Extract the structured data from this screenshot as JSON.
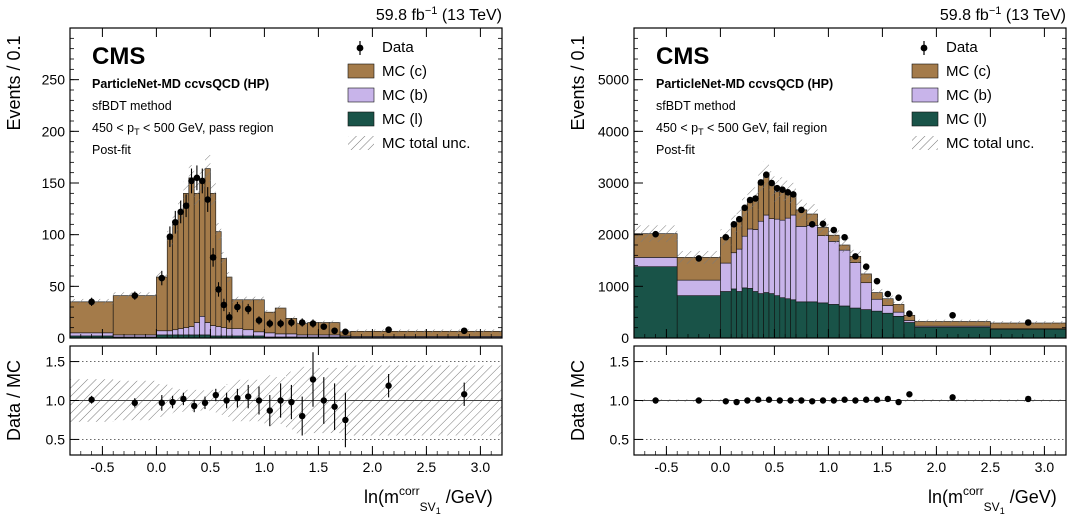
{
  "colors": {
    "mc_c": "#a47b4a",
    "mc_b": "#c8b4ea",
    "mc_l": "#195348",
    "data": "#000000",
    "unc_hatch": "#7a7a7a"
  },
  "common": {
    "x_edges": [
      -0.8,
      -0.4,
      0.0,
      0.1,
      0.15,
      0.2,
      0.25,
      0.3,
      0.35,
      0.4,
      0.45,
      0.5,
      0.55,
      0.6,
      0.65,
      0.7,
      0.8,
      0.9,
      1.0,
      1.1,
      1.2,
      1.3,
      1.4,
      1.5,
      1.6,
      1.7,
      1.8,
      2.5,
      3.2
    ],
    "x_ticks": [
      -0.5,
      0.0,
      0.5,
      1.0,
      1.5,
      2.0,
      2.5,
      3.0
    ],
    "x_tick_labels": [
      "-0.5",
      "0.0",
      "0.5",
      "1.0",
      "1.5",
      "2.0",
      "2.5",
      "3.0"
    ],
    "ratio_ticks": [
      0.5,
      1.0,
      1.5
    ],
    "ratio_tick_labels": [
      "0.5",
      "1.0",
      "1.5"
    ],
    "ratio_ylabel": "Data / MC",
    "ylabel": "Events / 0.1",
    "xlabel": "ln(m",
    "xlabel_sup": "corr",
    "xlabel_sub": "SV",
    "xlabel_sub2": "1",
    "xlabel_tail": " /GeV)",
    "lumi_prefix": "59.8 fb",
    "lumi_sup": "−1",
    "lumi_suffix": " (13 TeV)",
    "cms_label": "CMS",
    "method": "sfBDT method",
    "postfit": "Post-fit",
    "pt_prefix": "450 < p",
    "pt_sub": "T",
    "legend": [
      "Data",
      "MC (c)",
      "MC (b)",
      "MC (l)",
      "MC total unc."
    ]
  },
  "chart_data": [
    {
      "type": "bar",
      "subtype": "stacked-histogram-with-ratio",
      "title": "ParticleNet-MD ccvsQCD (HP)",
      "region_suffix": " < 500 GeV, pass region",
      "ylim": [
        0,
        300
      ],
      "y_ticks": [
        0,
        50,
        100,
        150,
        200,
        250
      ],
      "y_tick_labels": [
        "0",
        "50",
        "100",
        "150",
        "200",
        "250"
      ],
      "ratio_ylim": [
        0.3,
        1.7
      ],
      "series": [
        {
          "name": "MC (l)",
          "values": [
            2,
            1,
            3,
            3,
            3,
            3,
            3,
            3,
            3,
            3,
            3,
            2,
            2,
            2,
            2,
            2,
            2,
            2,
            1,
            1,
            1,
            1,
            1,
            1,
            1,
            1,
            0.5,
            0.5
          ]
        },
        {
          "name": "MC (b)",
          "values": [
            3,
            2,
            4,
            4,
            5,
            6,
            7,
            8,
            12,
            18,
            12,
            10,
            9,
            8,
            7,
            7,
            6,
            4,
            4,
            3,
            3,
            2,
            2,
            2,
            2,
            1,
            1,
            1
          ]
        },
        {
          "name": "MC (c)",
          "values": [
            30,
            38,
            52,
            89,
            102,
            114,
            130,
            144,
            125,
            133,
            149,
            128,
            92,
            67,
            50,
            28,
            29,
            31,
            20,
            25,
            15,
            11,
            12,
            12,
            12,
            4,
            5,
            5
          ]
        }
      ],
      "data": {
        "x": [
          -0.6,
          -0.2,
          0.05,
          0.125,
          0.175,
          0.225,
          0.275,
          0.325,
          0.375,
          0.425,
          0.475,
          0.525,
          0.575,
          0.625,
          0.675,
          0.75,
          0.85,
          0.95,
          1.05,
          1.15,
          1.25,
          1.35,
          1.45,
          1.55,
          1.65,
          1.75,
          2.15,
          2.85
        ],
        "y": [
          35,
          41,
          58,
          98,
          112,
          122,
          128,
          152,
          155,
          152,
          134,
          78,
          47,
          32,
          20,
          30,
          28,
          17,
          14,
          14,
          15,
          15,
          14,
          11,
          7,
          6,
          8,
          7
        ],
        "err": [
          4,
          4,
          7,
          10,
          11,
          11,
          11,
          12,
          12,
          12,
          12,
          9,
          7,
          6,
          5,
          5,
          5,
          4,
          4,
          4,
          4,
          4,
          4,
          3,
          3,
          2,
          2,
          2
        ]
      },
      "ratio": {
        "x": [
          -0.6,
          -0.2,
          0.05,
          0.15,
          0.25,
          0.35,
          0.45,
          0.55,
          0.65,
          0.75,
          0.85,
          0.95,
          1.05,
          1.15,
          1.25,
          1.35,
          1.45,
          1.55,
          1.65,
          1.75,
          2.15,
          2.85
        ],
        "y": [
          1.01,
          0.97,
          0.97,
          0.98,
          1.02,
          0.93,
          0.97,
          1.07,
          1.0,
          1.03,
          1.05,
          1.0,
          0.87,
          1.0,
          0.98,
          0.8,
          1.27,
          1.0,
          0.92,
          0.75,
          1.19,
          1.08
        ],
        "err": [
          0.05,
          0.06,
          0.1,
          0.08,
          0.08,
          0.08,
          0.08,
          0.08,
          0.1,
          0.12,
          0.15,
          0.18,
          0.2,
          0.22,
          0.22,
          0.25,
          0.35,
          0.3,
          0.3,
          0.35,
          0.15,
          0.15
        ]
      }
    },
    {
      "type": "bar",
      "subtype": "stacked-histogram-with-ratio",
      "title": "ParticleNet-MD ccvsQCD (HP)",
      "region_suffix": " < 500 GeV, fail region",
      "ylim": [
        0,
        6000
      ],
      "y_ticks": [
        0,
        1000,
        2000,
        3000,
        4000,
        5000
      ],
      "y_tick_labels": [
        "0",
        "1000",
        "2000",
        "3000",
        "4000",
        "5000"
      ],
      "ratio_ylim": [
        0.3,
        1.7
      ],
      "series": [
        {
          "name": "MC (l)",
          "values": [
            1380,
            820,
            900,
            950,
            900,
            970,
            960,
            900,
            860,
            880,
            860,
            820,
            780,
            760,
            740,
            700,
            700,
            680,
            650,
            620,
            580,
            550,
            520,
            480,
            420,
            300,
            210,
            170
          ]
        },
        {
          "name": "MC (b)",
          "values": [
            180,
            300,
            550,
            700,
            820,
            1000,
            1150,
            1200,
            1400,
            1500,
            1450,
            1480,
            1500,
            1560,
            1640,
            1460,
            1480,
            1300,
            1220,
            1080,
            880,
            520,
            230,
            150,
            80,
            40,
            20,
            10
          ]
        },
        {
          "name": "MC (c)",
          "values": [
            460,
            440,
            500,
            550,
            580,
            550,
            560,
            600,
            750,
            780,
            680,
            530,
            600,
            500,
            400,
            320,
            220,
            160,
            120,
            100,
            120,
            170,
            130,
            130,
            150,
            100,
            90,
            110
          ]
        }
      ],
      "data": {
        "x": [
          -0.6,
          -0.2,
          0.05,
          0.125,
          0.175,
          0.225,
          0.275,
          0.325,
          0.375,
          0.425,
          0.475,
          0.525,
          0.575,
          0.625,
          0.675,
          0.75,
          0.85,
          0.95,
          1.05,
          1.15,
          1.25,
          1.35,
          1.45,
          1.55,
          1.65,
          1.75,
          2.15,
          2.85
        ],
        "y": [
          2010,
          1540,
          1950,
          2200,
          2300,
          2520,
          2670,
          2700,
          3010,
          3160,
          3000,
          2900,
          2870,
          2820,
          2780,
          2480,
          2200,
          2210,
          2090,
          1950,
          1580,
          1380,
          1100,
          850,
          780,
          470,
          440,
          300
        ],
        "err": [
          40,
          40,
          45,
          45,
          50,
          50,
          50,
          50,
          55,
          55,
          55,
          55,
          55,
          55,
          50,
          50,
          45,
          45,
          45,
          45,
          40,
          35,
          35,
          30,
          28,
          22,
          20,
          17
        ]
      },
      "ratio": {
        "x": [
          -0.6,
          -0.2,
          0.05,
          0.15,
          0.25,
          0.35,
          0.45,
          0.55,
          0.65,
          0.75,
          0.85,
          0.95,
          1.05,
          1.15,
          1.25,
          1.35,
          1.45,
          1.55,
          1.65,
          1.75,
          2.15,
          2.85
        ],
        "y": [
          1.0,
          1.0,
          0.99,
          0.98,
          1.0,
          1.01,
          1.01,
          1.0,
          1.0,
          1.0,
          0.99,
          1.0,
          1.0,
          1.01,
          1.0,
          1.01,
          1.01,
          1.02,
          0.98,
          1.08,
          1.04,
          1.02
        ],
        "err": [
          0.01,
          0.01,
          0.01,
          0.01,
          0.01,
          0.01,
          0.01,
          0.01,
          0.01,
          0.01,
          0.01,
          0.01,
          0.01,
          0.01,
          0.01,
          0.01,
          0.01,
          0.02,
          0.02,
          0.02,
          0.02,
          0.02
        ]
      }
    }
  ]
}
